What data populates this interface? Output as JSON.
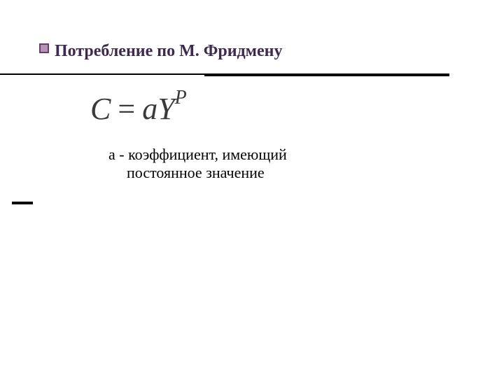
{
  "title": "Потребление по М. Фридмену",
  "formula": {
    "lhs": "С",
    "rhs_coef": "а",
    "rhs_var": "Y",
    "rhs_exp": "P",
    "color": "#3a3a3a",
    "fontsize": 44
  },
  "legend": {
    "line1": "а - коэффициент, имеющий",
    "line2": "постоянное значение",
    "fontsize": 22
  },
  "colors": {
    "title": "#3f2a4f",
    "background": "#ffffff",
    "rule": "#000000",
    "bullet_outer": "#6a3d6a",
    "bullet_inner": "#b694b6"
  }
}
